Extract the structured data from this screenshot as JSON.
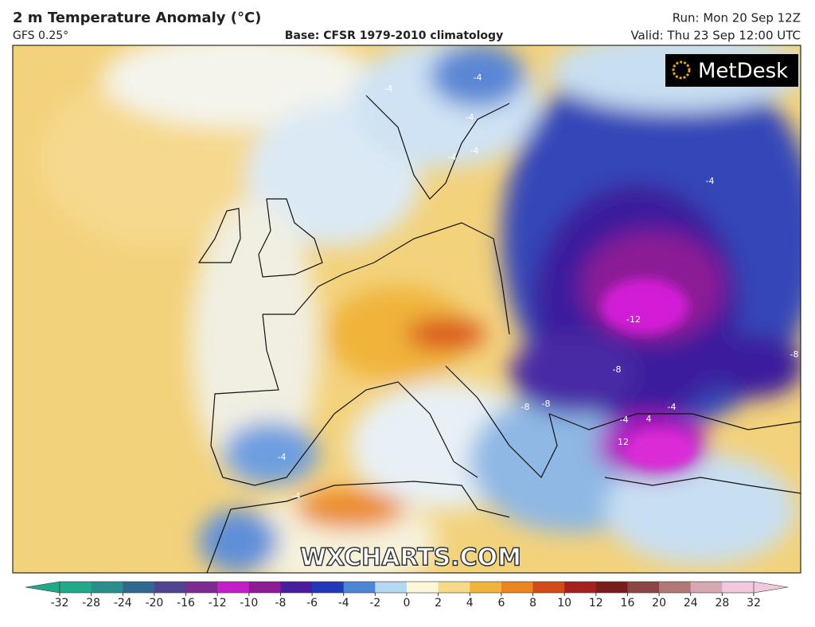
{
  "header": {
    "title": "2 m Temperature Anomaly (°C)",
    "model": "GFS 0.25°",
    "base": "Base: CFSR 1979-2010 climatology",
    "run": "Run: Mon 20 Sep 12Z",
    "valid": "Valid: Thu 23 Sep 12:00 UTC"
  },
  "logo": "MetDesk",
  "watermark": "WXCHARTS.COM",
  "contour_labels": [
    "-4",
    "-4",
    "-4",
    "-4",
    "-12",
    "-8",
    "-8",
    "-8",
    "-4",
    "-4",
    "12",
    "-8",
    "4",
    "-4",
    "-4",
    "-4",
    "-4"
  ],
  "colorbar": {
    "ticks": [
      -32,
      -28,
      -24,
      -20,
      -16,
      -12,
      -10,
      -8,
      -6,
      -4,
      -2,
      0,
      2,
      4,
      6,
      8,
      10,
      12,
      16,
      20,
      24,
      28,
      32
    ],
    "colors": [
      "#22a98a",
      "#2a8f8c",
      "#33688e",
      "#50438f",
      "#7d2a93",
      "#c21fc9",
      "#8e1a95",
      "#4a1c9e",
      "#2238b8",
      "#4e86d6",
      "#b3d8f0",
      "#fdf6d8",
      "#f7d98a",
      "#f0b43a",
      "#ec8420",
      "#d24a18",
      "#a72020",
      "#7a1c1c",
      "#8c4646",
      "#b27878",
      "#d6a8b2",
      "#f2c8de"
    ]
  }
}
